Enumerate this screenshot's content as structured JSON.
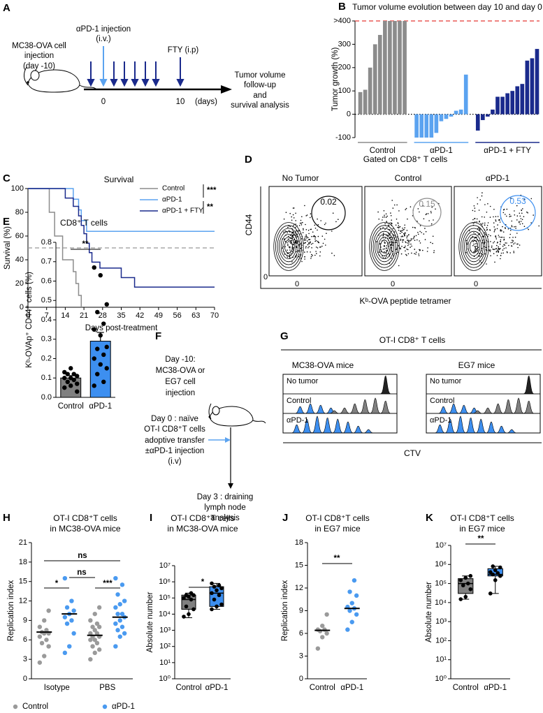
{
  "panel_labels": [
    "A",
    "B",
    "C",
    "D",
    "E",
    "F",
    "G",
    "H",
    "I",
    "J",
    "K"
  ],
  "diagram_a": {
    "cell_injection": [
      "MC38-OVA cell",
      "injection",
      "(day -10)"
    ],
    "antibody_injection": [
      "αPD-1 injection",
      "(i.v.)"
    ],
    "fty": "FTY (i.p)",
    "timeline_ticks": [
      "0",
      "10",
      "(days)"
    ],
    "readout": [
      "Tumor volume",
      "follow-up",
      "and",
      "survival analysis"
    ]
  },
  "flow_d": {
    "title": "Gated on CD8⁺ T cells",
    "conditions": [
      {
        "name": "No Tumor",
        "gate": "0.02",
        "color": "#000000"
      },
      {
        "name": "Control",
        "gate": "0.15",
        "color": "#8c8c8c"
      },
      {
        "name": "αPD-1",
        "gate": "0.53",
        "color": "#3d8ff0"
      }
    ],
    "y_label": "CD44",
    "x_label": "Kᵇ-OVA peptide tetramer",
    "zero": "0"
  },
  "diagram_f": {
    "step1": [
      "Day -10:",
      "MC38-OVA or",
      "EG7 cell",
      "injection"
    ],
    "step2": [
      "Day 0 : naïve",
      "OT-I CD8⁺T cells",
      "adoptive transfer",
      "±αPD-1 injection",
      "(i.v)"
    ],
    "step3": [
      "Day 3 : draining",
      "lymph node",
      "analysis"
    ]
  },
  "histogram_g": {
    "title": "OT-I CD8⁺ T cells",
    "panels": [
      "MC38-OVA mice",
      "EG7 mice"
    ],
    "rows": [
      "No tumor",
      "Control",
      "αPD-1"
    ],
    "x_label": "CTV"
  },
  "chart_data": [
    {
      "type": "bar",
      "title": "Tumor volume evolution between day 10 and day 0",
      "y_label": "Tumor growth (%)",
      "ylim": [
        -100,
        400
      ],
      "yticks": [
        -100,
        0,
        100,
        200,
        300,
        {
          "value": 400,
          "label": ">400"
        }
      ],
      "reference_lines": [
        {
          "value": 400,
          "color": "#e53935",
          "style": "dashed"
        },
        {
          "value": 0,
          "color": "#000000",
          "style": "dotted"
        }
      ],
      "series": [
        {
          "name": "Control",
          "color": "#8c8c8c",
          "values": [
            95,
            105,
            200,
            300,
            340,
            400,
            400,
            400,
            400,
            400
          ]
        },
        {
          "name": "αPD-1",
          "color": "#5ba3f0",
          "values": [
            -100,
            -100,
            -100,
            -100,
            -80,
            -30,
            -20,
            -10,
            15,
            20,
            170
          ]
        },
        {
          "name": "αPD-1 + FTY",
          "color": "#1a2a8c",
          "values": [
            -70,
            -25,
            -10,
            20,
            75,
            75,
            90,
            100,
            120,
            130,
            230,
            240,
            280
          ]
        }
      ]
    },
    {
      "type": "line",
      "step": true,
      "title": "Survival",
      "x_label": "Days post-treatment",
      "y_label": "Survival (%)",
      "xlim": [
        0,
        70
      ],
      "xticks": [
        0,
        7,
        14,
        21,
        28,
        35,
        42,
        49,
        56,
        63,
        70
      ],
      "ylim": [
        0,
        100
      ],
      "yticks": [
        0,
        20,
        40,
        60,
        80,
        100
      ],
      "reference_lines": [
        {
          "value": 50,
          "color": "#999999",
          "style": "dashed"
        }
      ],
      "legend": "upper right",
      "annotations": [
        "***",
        "**"
      ],
      "series": [
        {
          "name": "Control",
          "color": "#8c8c8c",
          "x": [
            0,
            8,
            10,
            13,
            17,
            18,
            19,
            20
          ],
          "values": [
            100,
            80,
            60,
            40,
            30,
            20,
            10,
            0
          ]
        },
        {
          "name": "αPD-1",
          "color": "#5ba3f0",
          "x": [
            0,
            17,
            19,
            20,
            22,
            70
          ],
          "values": [
            100,
            91,
            82,
            73,
            64,
            64
          ]
        },
        {
          "name": "αPD-1 + FTY",
          "color": "#1a2a8c",
          "x": [
            0,
            14,
            17,
            19,
            20,
            21,
            22,
            23,
            24,
            27,
            35,
            40,
            70
          ],
          "values": [
            100,
            92,
            85,
            77,
            69,
            62,
            54,
            46,
            38,
            33,
            25,
            17,
            17
          ]
        }
      ]
    },
    {
      "type": "bar",
      "title": "CD8⁺ T cells",
      "y_label": "Kᵇ-OVAp⁺ CD44⁺ cells (%)",
      "categories": [
        "Control",
        "αPD-1"
      ],
      "colors": [
        "#808080",
        "#3d8ff0"
      ],
      "values": [
        0.1,
        0.29
      ],
      "errors": [
        0.012,
        0.045
      ],
      "points": [
        [
          0.05,
          0.06,
          0.07,
          0.08,
          0.09,
          0.1,
          0.1,
          0.11,
          0.12,
          0.12,
          0.13,
          0.15,
          0.03
        ],
        [
          0.67,
          0.63,
          0.48,
          0.44,
          0.38,
          0.35,
          0.32,
          0.26,
          0.25,
          0.22,
          0.2,
          0.17,
          0.15,
          0.12,
          0.08,
          0.06
        ]
      ],
      "ylim": [
        0,
        0.8
      ],
      "yticks": [
        {
          "value": 0,
          "label": "0.0"
        },
        0.1,
        0.2,
        0.3,
        0.4,
        0.5,
        0.6,
        0.7,
        0.8
      ],
      "annotations": [
        "**"
      ]
    },
    {
      "type": "scatter",
      "title": [
        "OT-I CD8⁺T cells",
        "in MC38-OVA mice"
      ],
      "y_label": "Replication index",
      "categories": [
        "Isotype",
        "PBS"
      ],
      "ylim": [
        0,
        21
      ],
      "yticks": [
        0,
        3,
        6,
        9,
        12,
        15,
        18,
        21
      ],
      "legend": "bottom",
      "annotations": [
        "ns",
        "ns",
        "*",
        "***"
      ],
      "series": [
        {
          "name": "Control",
          "color": "#9a9a9a",
          "values": [
            [
              2.5,
              3.5,
              5,
              5.5,
              6,
              6.5,
              7,
              7,
              7.2,
              7.5,
              8,
              9,
              10.5
            ],
            [
              3,
              4,
              4.5,
              5,
              5.5,
              6,
              6,
              6.5,
              6.5,
              7,
              7,
              7.5,
              8,
              8,
              8.5,
              9,
              10,
              11
            ]
          ],
          "medians": [
            7.2,
            6.7
          ]
        },
        {
          "name": "αPD-1",
          "color": "#4a9af0",
          "values": [
            [
              4,
              5,
              7,
              8.5,
              9,
              9.5,
              10,
              10.5,
              11,
              12,
              15.5
            ],
            [
              5,
              6.5,
              7,
              7.5,
              8,
              8.5,
              9,
              9.5,
              10,
              10,
              11,
              11.5,
              12,
              13,
              14.5,
              15.5
            ]
          ],
          "medians": [
            10,
            9.5
          ]
        }
      ]
    },
    {
      "type": "box",
      "log_scale": true,
      "title": [
        "OT-I CD8⁺T cells",
        "in MC38-OVA mice"
      ],
      "y_label": "Absolute number",
      "categories": [
        "Control",
        "αPD-1"
      ],
      "colors": [
        "#808080",
        "#3d8ff0"
      ],
      "boxes": [
        {
          "min": 6000,
          "q1": 20000,
          "median": 80000,
          "q3": 150000,
          "max": 200000
        },
        {
          "min": 20000,
          "q1": 30000,
          "median": 200000,
          "q3": 500000,
          "max": 800000
        }
      ],
      "points": [
        [
          7000,
          10000,
          20000,
          30000,
          80000,
          100000,
          120000,
          150000,
          150000,
          200000
        ],
        [
          20000,
          30000,
          40000,
          80000,
          150000,
          200000,
          300000,
          400000,
          500000,
          600000,
          800000
        ]
      ],
      "ylim": [
        1,
        10000000
      ],
      "yticks": [
        {
          "value": 1,
          "label": "10⁰"
        },
        {
          "value": 10,
          "label": "10¹"
        },
        {
          "value": 100,
          "label": "10²"
        },
        {
          "value": 1000,
          "label": "10³"
        },
        {
          "value": 10000,
          "label": "10⁴"
        },
        {
          "value": 100000,
          "label": "10⁵"
        },
        {
          "value": 1000000,
          "label": "10⁶"
        },
        {
          "value": 10000000,
          "label": "10⁷"
        }
      ],
      "annotations": [
        "*"
      ]
    },
    {
      "type": "scatter",
      "title": [
        "OT-I CD8⁺T cells",
        "in EG7 mice"
      ],
      "y_label": "Replication index",
      "categories": [
        "Control",
        "αPD-1"
      ],
      "colors": [
        "#9a9a9a",
        "#4a9af0"
      ],
      "values": [
        [
          4,
          5.5,
          6,
          6.3,
          6.5,
          6.5,
          7,
          8.5
        ],
        [
          6.5,
          7.5,
          8.5,
          9,
          9.3,
          9.5,
          10,
          11,
          11.5,
          13
        ]
      ],
      "medians": [
        6.4,
        9.3
      ],
      "ylim": [
        0,
        18
      ],
      "yticks": [
        0,
        3,
        6,
        9,
        12,
        15,
        18
      ],
      "annotations": [
        "**"
      ]
    },
    {
      "type": "box",
      "log_scale": true,
      "title": [
        "OT-I CD8⁺T cells",
        "in EG7 mice"
      ],
      "y_label": "Absolute number",
      "categories": [
        "Control",
        "αPD-1"
      ],
      "colors": [
        "#808080",
        "#3d8ff0"
      ],
      "boxes": [
        {
          "min": 15000,
          "q1": 30000,
          "median": 100000,
          "q3": 180000,
          "max": 250000
        },
        {
          "min": 30000,
          "q1": 250000,
          "median": 300000,
          "q3": 600000,
          "max": 800000
        }
      ],
      "points": [
        [
          15000,
          20000,
          50000,
          80000,
          100000,
          150000,
          200000,
          250000
        ],
        [
          30000,
          150000,
          250000,
          300000,
          350000,
          400000,
          500000,
          700000,
          800000
        ]
      ],
      "ylim": [
        1,
        10000000
      ],
      "yticks": [
        {
          "value": 1,
          "label": "10⁰"
        },
        {
          "value": 10,
          "label": "10¹"
        },
        {
          "value": 100,
          "label": "10²"
        },
        {
          "value": 1000,
          "label": "10³"
        },
        {
          "value": 10000,
          "label": "10⁴"
        },
        {
          "value": 100000,
          "label": "10⁵"
        },
        {
          "value": 1000000,
          "label": "10⁶"
        },
        {
          "value": 10000000,
          "label": "10⁷"
        }
      ],
      "annotations": [
        "**"
      ]
    }
  ]
}
